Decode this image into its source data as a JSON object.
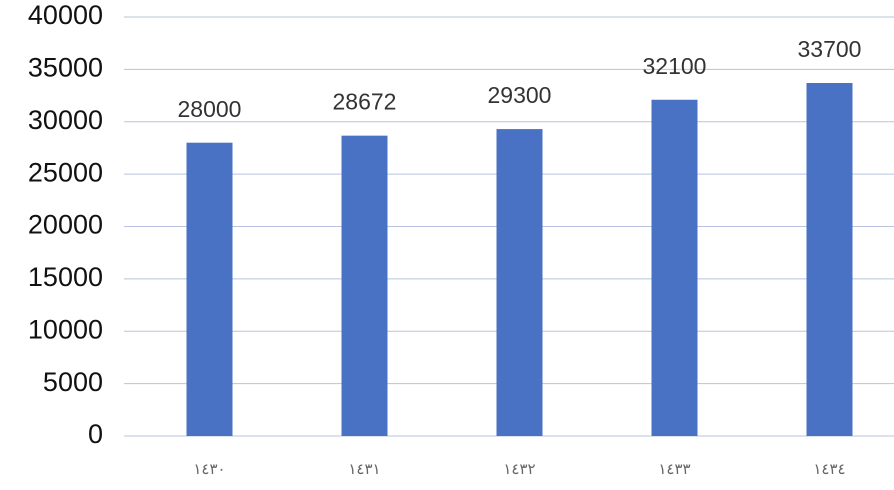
{
  "chart_data": {
    "type": "bar",
    "categories": [
      "١٤٣٠",
      "١٤٣١",
      "١٤٣٢",
      "١٤٣٣",
      "١٤٣٤"
    ],
    "values": [
      28000,
      28672,
      29300,
      32100,
      33700
    ],
    "color": "#4a72c4",
    "ylim": [
      0,
      40000
    ],
    "yticks": [
      0,
      5000,
      10000,
      15000,
      20000,
      25000,
      30000,
      35000,
      40000
    ],
    "grid": true
  }
}
